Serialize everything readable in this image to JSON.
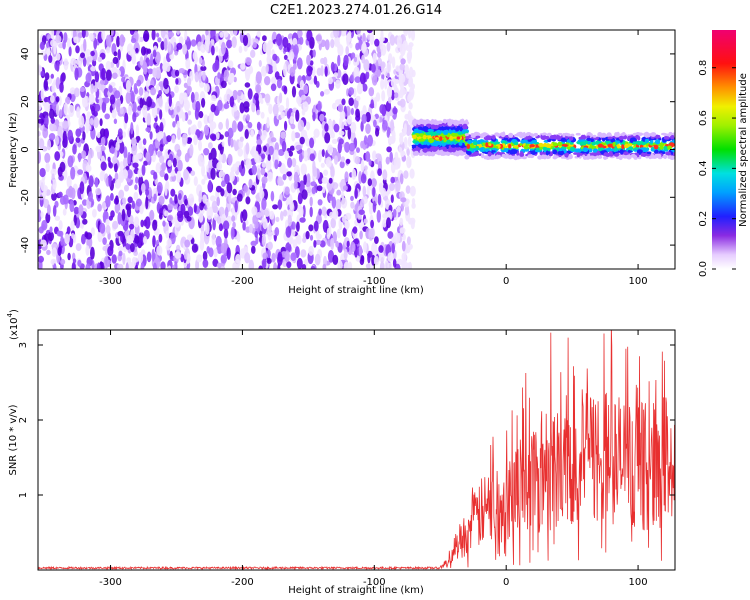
{
  "title": "C2E1.2023.274.01.26.G14",
  "chart_data": [
    {
      "type": "heatmap",
      "xlabel": "Height of straight line (km)",
      "ylabel": "Frequency (Hz)",
      "xlim": [
        -355,
        128
      ],
      "ylim": [
        -50,
        50
      ],
      "xticks": [
        -300,
        -200,
        -100,
        0,
        100
      ],
      "yticks": [
        -40,
        -20,
        0,
        20,
        40
      ],
      "colorbar": {
        "label": "Normalized spectral amplitude",
        "ticks": [
          "0.0",
          "0.2",
          "0.4",
          "0.6",
          "0.8"
        ],
        "tick_values": [
          0,
          0.2,
          0.4,
          0.6,
          0.8
        ],
        "range": [
          0,
          0.95
        ]
      },
      "regions": [
        {
          "x_range": [
            -355,
            -70
          ],
          "y_range": [
            -50,
            50
          ],
          "amplitude": 0.2,
          "description": "broadband"
        },
        {
          "x_range": [
            -70,
            -30
          ],
          "center": 5,
          "amplitude": 0.7
        },
        {
          "x_range": [
            -30,
            128
          ],
          "center": 1.5,
          "amplitude": 0.85
        }
      ]
    },
    {
      "type": "line",
      "xlabel": "Height of straight line (km)",
      "ylabel": "SNR (10 * v/v)",
      "y_multiplier": "(x10",
      "y_multiplier_exp": "4",
      "y_multiplier_close": ")",
      "xlim": [
        -355,
        128
      ],
      "ylim": [
        0,
        3.2
      ],
      "xticks": [
        -300,
        -200,
        -100,
        0,
        100
      ],
      "yticks": [
        1,
        2,
        3
      ],
      "series": [
        {
          "x": [
            -355,
            -100,
            -50,
            -45,
            -40,
            -30,
            -20,
            -10,
            0,
            10,
            20,
            30,
            40,
            50,
            60,
            70,
            80,
            90,
            100,
            110,
            120,
            128
          ],
          "y": [
            0.02,
            0.02,
            0.04,
            0.1,
            0.3,
            0.55,
            0.8,
            0.95,
            1.05,
            1.2,
            1.35,
            1.5,
            1.55,
            1.6,
            1.62,
            1.65,
            1.62,
            1.55,
            1.5,
            1.5,
            1.6,
            1.5
          ],
          "color": "#e83030"
        }
      ]
    }
  ]
}
